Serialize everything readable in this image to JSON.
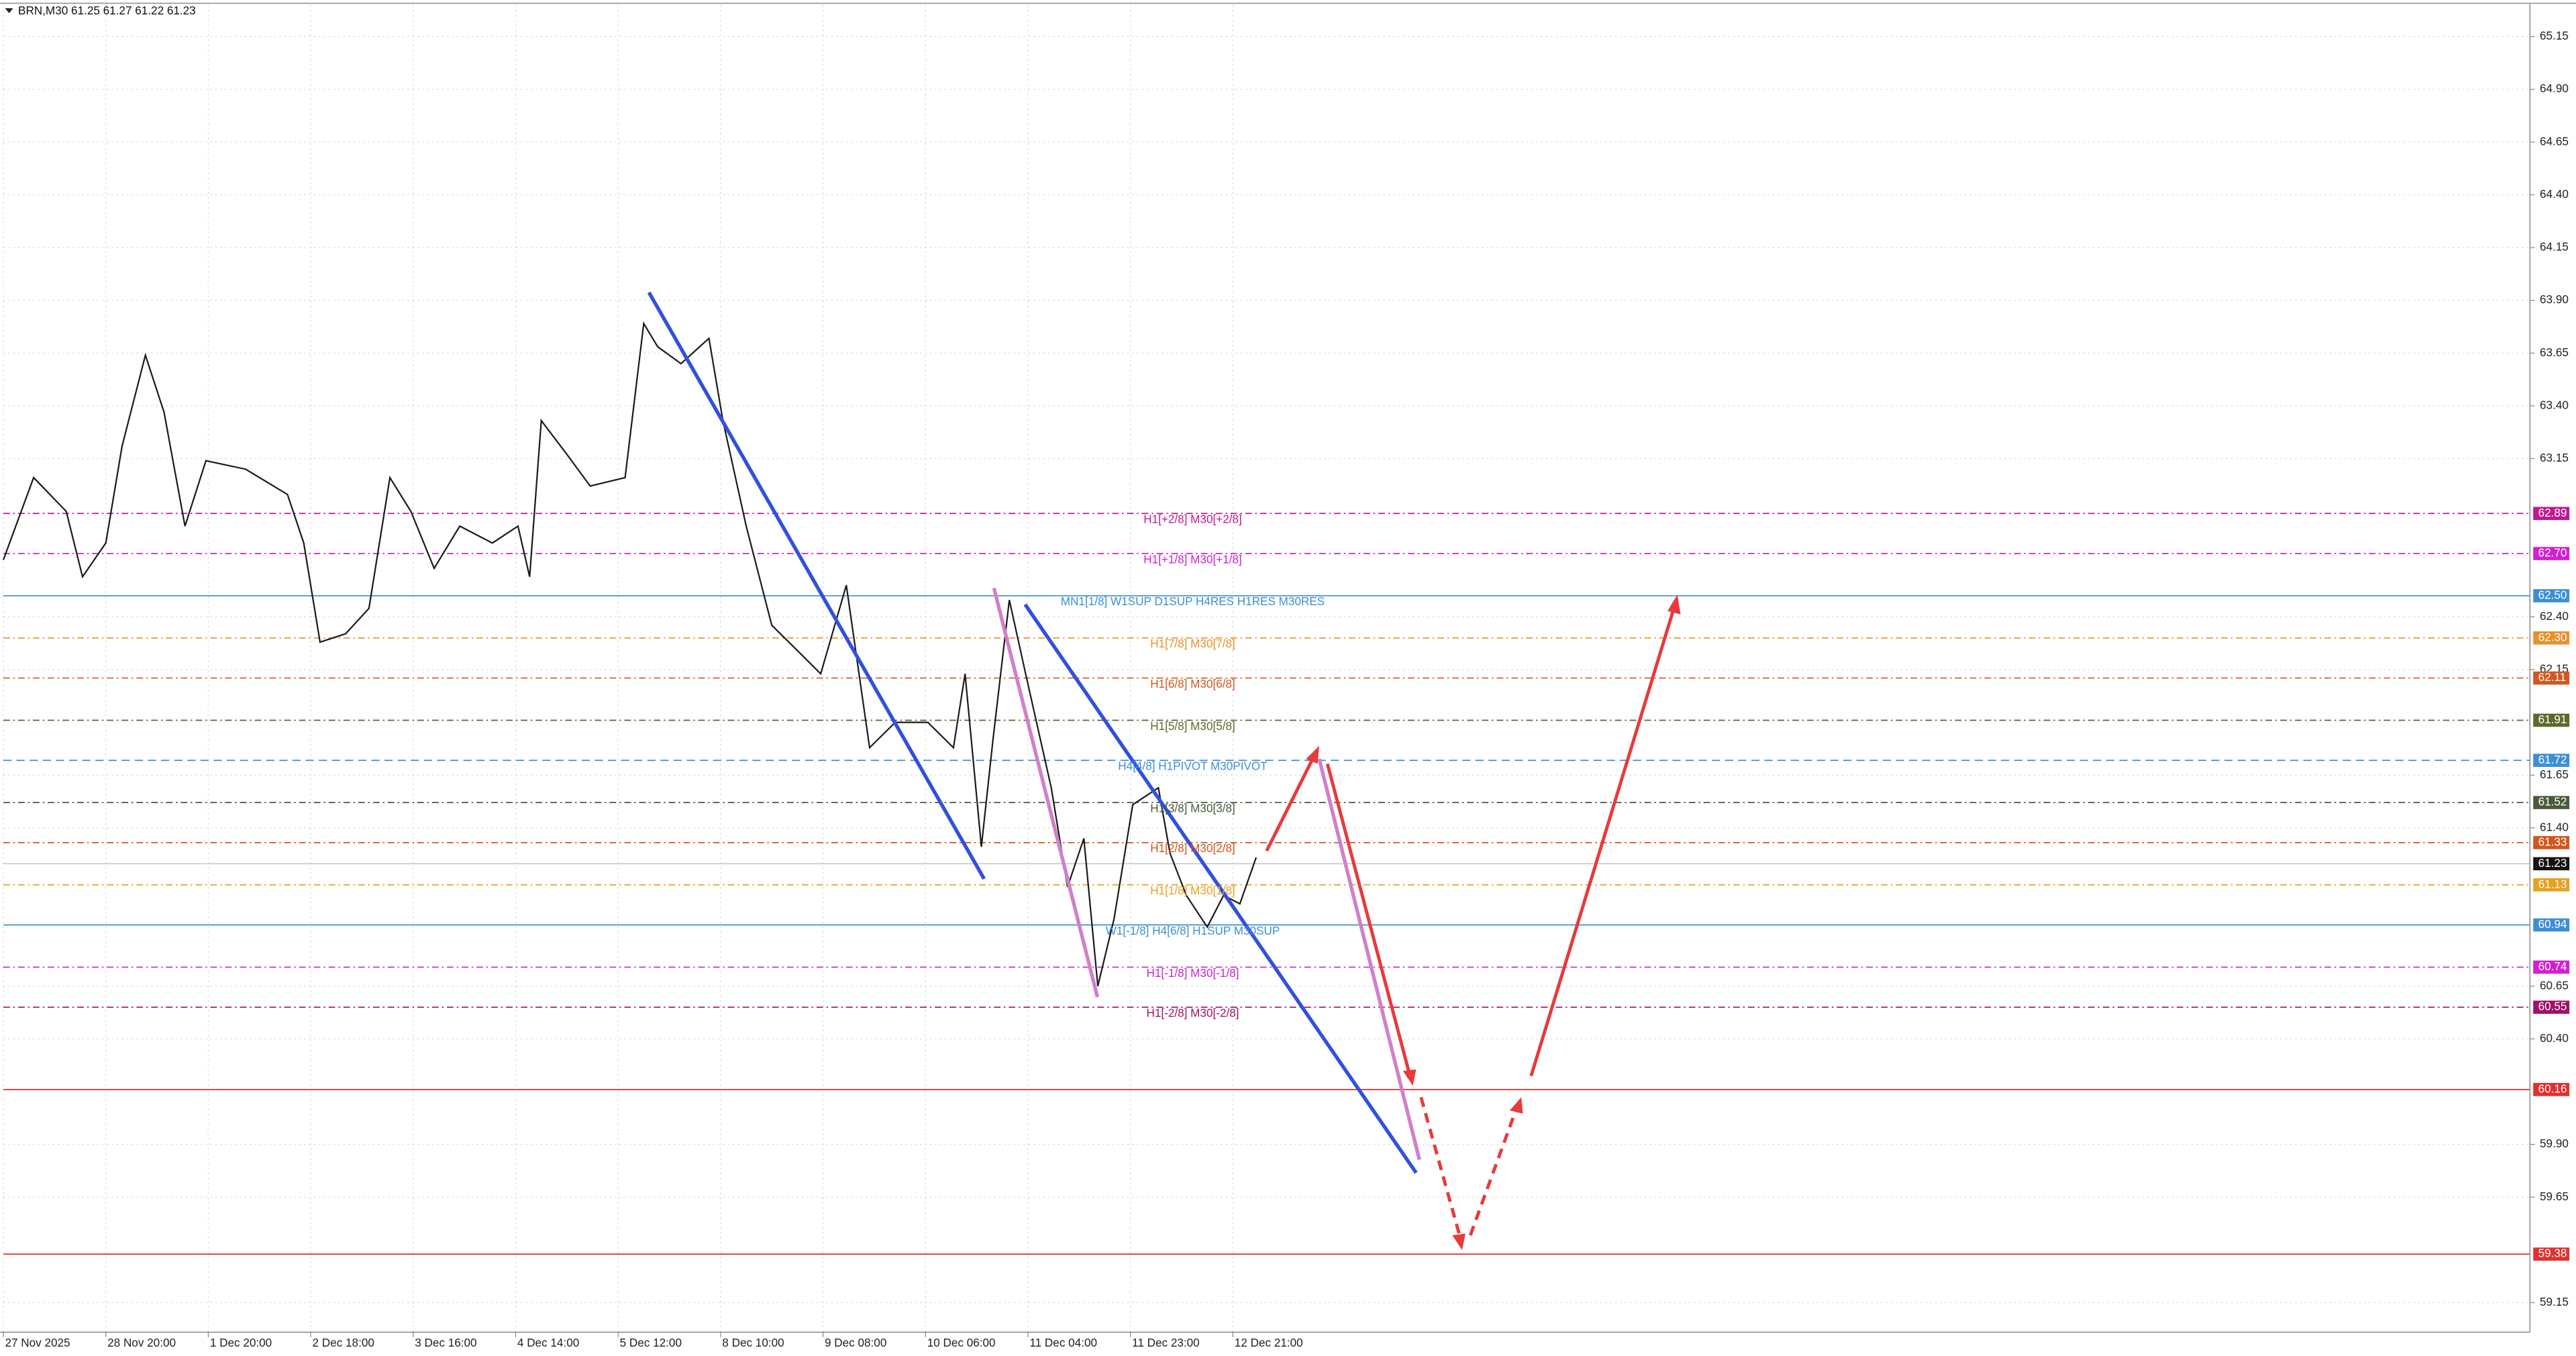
{
  "chart_data": {
    "type": "line",
    "title": "BRN,M30  61.25 61.27 61.22 61.23",
    "xlim": [
      0,
      1085
    ],
    "ylim": [
      59.01,
      65.3
    ],
    "xticks": [
      {
        "value": 0,
        "label": "27 Nov 2025"
      },
      {
        "value": 44,
        "label": "28 Nov 20:00"
      },
      {
        "value": 88,
        "label": "1 Dec 20:00"
      },
      {
        "value": 132,
        "label": "2 Dec 18:00"
      },
      {
        "value": 176,
        "label": "3 Dec 16:00"
      },
      {
        "value": 220,
        "label": "4 Dec 14:00"
      },
      {
        "value": 264,
        "label": "5 Dec 12:00"
      },
      {
        "value": 308,
        "label": "8 Dec 10:00"
      },
      {
        "value": 352,
        "label": "9 Dec 08:00"
      },
      {
        "value": 396,
        "label": "10 Dec 06:00"
      },
      {
        "value": 440,
        "label": "11 Dec 04:00"
      },
      {
        "value": 484,
        "label": "11 Dec 23:00"
      },
      {
        "value": 528,
        "label": "12 Dec 21:00"
      }
    ],
    "yticks": [
      65.15,
      {
        "value": 64.9,
        "label": "64.90"
      },
      64.65,
      {
        "value": 64.4,
        "label": "64.40"
      },
      64.15,
      {
        "value": 63.9,
        "label": "63.90"
      },
      63.65,
      {
        "value": 63.4,
        "label": "63.40"
      },
      63.15,
      {
        "value": 62.4,
        "label": "62.40"
      },
      62.15,
      61.65,
      {
        "value": 61.4,
        "label": "61.40"
      },
      60.65,
      {
        "value": 60.4,
        "label": "60.40"
      },
      {
        "value": 59.9,
        "label": "59.90"
      },
      59.65,
      59.15
    ],
    "grid": true,
    "series": [
      {
        "color": "#1a1a1a",
        "x": [
          0,
          13,
          27,
          34,
          44,
          51,
          61,
          69,
          78,
          87,
          104,
          122,
          129,
          136,
          147,
          157,
          166,
          175,
          185,
          196,
          210,
          221,
          226,
          231,
          242,
          252,
          267,
          275,
          281,
          291,
          303,
          309,
          319,
          330,
          341,
          351,
          362,
          372,
          383,
          397,
          408,
          413,
          420,
          425,
          432,
          439,
          450,
          457,
          464,
          470,
          477,
          485,
          496,
          501,
          508,
          517,
          524,
          531,
          538
        ],
        "values": [
          62.67,
          63.06,
          62.9,
          62.59,
          62.75,
          63.21,
          63.64,
          63.37,
          62.83,
          63.14,
          63.1,
          62.98,
          62.75,
          62.28,
          62.32,
          62.44,
          63.06,
          62.9,
          62.63,
          62.83,
          62.75,
          62.83,
          62.59,
          63.33,
          63.17,
          63.02,
          63.06,
          63.79,
          63.68,
          63.6,
          63.72,
          63.33,
          62.83,
          62.36,
          62.24,
          62.13,
          62.55,
          61.78,
          61.9,
          61.9,
          61.78,
          62.13,
          61.31,
          61.82,
          62.48,
          62.13,
          61.59,
          61.12,
          61.35,
          60.65,
          60.97,
          61.51,
          61.59,
          61.28,
          61.08,
          60.93,
          61.08,
          61.04,
          61.26
        ]
      }
    ],
    "last_price": {
      "value": 61.23,
      "label": "61.23"
    },
    "levels": [
      {
        "value": 62.89,
        "value_label": "62.89",
        "label": "H1[+2/8] M30[+2/8]",
        "color": "#c01890",
        "style": "dashdot"
      },
      {
        "value": 62.7,
        "value_label": "62.70",
        "label": "H1[+1/8] M30[+1/8]",
        "color": "#d020d0",
        "style": "dashdot"
      },
      {
        "value": 62.5,
        "value_label": "62.50",
        "label": "MN1[1/8] W1SUP D1SUP H4RES H1RES M30RES",
        "color": "#3c8fd4",
        "style": "solid"
      },
      {
        "value": 62.3,
        "value_label": "62.30",
        "label": "H1[7/8] M30[7/8]",
        "color": "#e8902a",
        "style": "dashdot"
      },
      {
        "value": 62.11,
        "value_label": "62.11",
        "label": "H1[6/8] M30[6/8]",
        "color": "#d2561e",
        "style": "dashdot"
      },
      {
        "value": 61.91,
        "value_label": "61.91",
        "label": "H1[5/8] M30[5/8]",
        "color": "#5a6a2a",
        "style": "dashdot"
      },
      {
        "value": 61.72,
        "value_label": "61.72",
        "label": "H4[4/8] H1PIVOT M30PIVOT",
        "color": "#3c8fd4",
        "style": "dashed"
      },
      {
        "value": 61.52,
        "value_label": "61.52",
        "label": "H1[3/8] M30[3/8]",
        "color": "#4a5a3a",
        "style": "dashdot"
      },
      {
        "value": 61.33,
        "value_label": "61.33",
        "label": "H1[2/8] M30[2/8]",
        "color": "#d2561e",
        "style": "dashdot"
      },
      {
        "value": 61.13,
        "value_label": "61.13",
        "label": "H1[1/8] M30[1/8]",
        "color": "#e8a020",
        "style": "dashdot"
      },
      {
        "value": 60.94,
        "value_label": "60.94",
        "label": "W1[-1/8] H4[6/8] H1SUP M30SUP",
        "color": "#3c8fd4",
        "style": "solid"
      },
      {
        "value": 60.74,
        "value_label": "60.74",
        "label": "H1[-1/8] M30[-1/8]",
        "color": "#d020d0",
        "style": "dashdot"
      },
      {
        "value": 60.55,
        "value_label": "60.55",
        "label": "H1[-2/8] M30[-2/8]",
        "color": "#a0106a",
        "style": "dashdot"
      },
      {
        "value": 60.16,
        "value_label": "60.16",
        "color": "#e03030",
        "style": "solid"
      },
      {
        "value": 59.38,
        "value_label": "59.38",
        "color": "#e03030",
        "style": "solid"
      }
    ]
  }
}
